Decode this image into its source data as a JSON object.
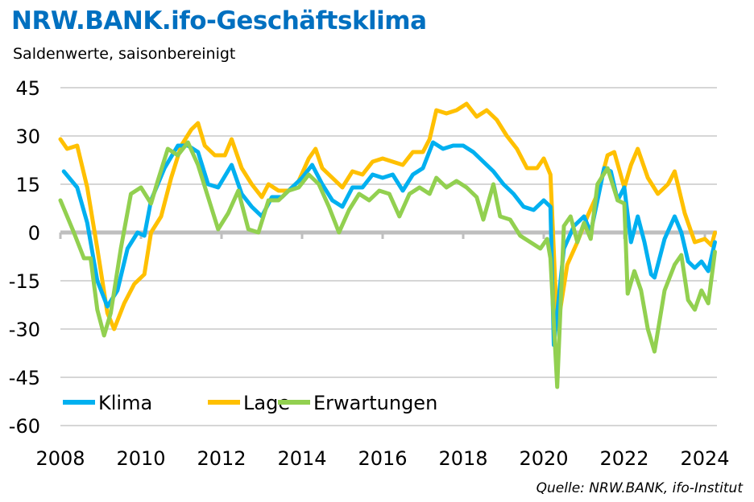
{
  "title": "NRW.BANK.ifo-Geschäftsklima",
  "subtitle": "Saldenwerte, saisonbereinigt",
  "source": "Quelle: NRW.BANK, ifo-Institut",
  "chart_data": {
    "type": "line",
    "title": "NRW.BANK.ifo-Geschäftsklima",
    "subtitle": "Saldenwerte, saisonbereinigt",
    "xlabel": "",
    "ylabel": "",
    "ylim": [
      -60,
      45
    ],
    "yticks": [
      45,
      30,
      15,
      0,
      -15,
      -30,
      -45,
      -60
    ],
    "xlim": [
      2008,
      2024.4
    ],
    "xticks": [
      "2008",
      "2010",
      "2012",
      "2014",
      "2016",
      "2018",
      "2020",
      "2022",
      "2024"
    ],
    "grid": true,
    "legend": "bottom-left",
    "series": [
      {
        "name": "Klima",
        "color": "#00b0f0",
        "points": [
          [
            "2008-02",
            19
          ],
          [
            "2008-06",
            14
          ],
          [
            "2008-09",
            3
          ],
          [
            "2008-12",
            -15
          ],
          [
            "2009-03",
            -23
          ],
          [
            "2009-06",
            -18
          ],
          [
            "2009-09",
            -5
          ],
          [
            "2009-12",
            0
          ],
          [
            "2010-02",
            -1
          ],
          [
            "2010-04",
            10
          ],
          [
            "2010-08",
            20
          ],
          [
            "2010-12",
            27
          ],
          [
            "2011-03",
            27
          ],
          [
            "2011-06",
            25
          ],
          [
            "2011-09",
            15
          ],
          [
            "2011-12",
            14
          ],
          [
            "2012-04",
            21
          ],
          [
            "2012-07",
            12
          ],
          [
            "2012-10",
            8
          ],
          [
            "2013-01",
            5
          ],
          [
            "2013-04",
            11
          ],
          [
            "2013-07",
            11
          ],
          [
            "2013-10",
            14
          ],
          [
            "2014-01",
            17
          ],
          [
            "2014-04",
            21
          ],
          [
            "2014-07",
            15
          ],
          [
            "2014-10",
            10
          ],
          [
            "2015-01",
            8
          ],
          [
            "2015-04",
            14
          ],
          [
            "2015-07",
            14
          ],
          [
            "2015-10",
            18
          ],
          [
            "2016-01",
            17
          ],
          [
            "2016-04",
            18
          ],
          [
            "2016-07",
            13
          ],
          [
            "2016-10",
            18
          ],
          [
            "2017-01",
            20
          ],
          [
            "2017-04",
            28
          ],
          [
            "2017-07",
            26
          ],
          [
            "2017-10",
            27
          ],
          [
            "2018-01",
            27
          ],
          [
            "2018-04",
            25
          ],
          [
            "2018-07",
            22
          ],
          [
            "2018-10",
            19
          ],
          [
            "2019-01",
            15
          ],
          [
            "2019-04",
            12
          ],
          [
            "2019-07",
            8
          ],
          [
            "2019-10",
            7
          ],
          [
            "2020-01",
            10
          ],
          [
            "2020-03",
            8
          ],
          [
            "2020-04",
            -35
          ],
          [
            "2020-05",
            -25
          ],
          [
            "2020-07",
            -5
          ],
          [
            "2020-10",
            2
          ],
          [
            "2021-01",
            5
          ],
          [
            "2021-03",
            0
          ],
          [
            "2021-05",
            10
          ],
          [
            "2021-07",
            20
          ],
          [
            "2021-09",
            19
          ],
          [
            "2021-11",
            10
          ],
          [
            "2022-01",
            14
          ],
          [
            "2022-03",
            -3
          ],
          [
            "2022-05",
            5
          ],
          [
            "2022-07",
            -3
          ],
          [
            "2022-09",
            -13
          ],
          [
            "2022-10",
            -14
          ],
          [
            "2023-01",
            -2
          ],
          [
            "2023-04",
            5
          ],
          [
            "2023-06",
            0
          ],
          [
            "2023-08",
            -9
          ],
          [
            "2023-10",
            -11
          ],
          [
            "2023-12",
            -9
          ],
          [
            "2024-02",
            -12
          ],
          [
            "2024-04",
            -3
          ]
        ]
      },
      {
        "name": "Lage",
        "color": "#ffc000",
        "points": [
          [
            "2008-01",
            29
          ],
          [
            "2008-03",
            26
          ],
          [
            "2008-06",
            27
          ],
          [
            "2008-09",
            14
          ],
          [
            "2008-12",
            -5
          ],
          [
            "2009-03",
            -25
          ],
          [
            "2009-05",
            -30
          ],
          [
            "2009-08",
            -22
          ],
          [
            "2009-11",
            -16
          ],
          [
            "2010-02",
            -13
          ],
          [
            "2010-04",
            0
          ],
          [
            "2010-07",
            5
          ],
          [
            "2010-10",
            17
          ],
          [
            "2011-01",
            27
          ],
          [
            "2011-04",
            32
          ],
          [
            "2011-06",
            34
          ],
          [
            "2011-08",
            27
          ],
          [
            "2011-11",
            24
          ],
          [
            "2012-02",
            24
          ],
          [
            "2012-04",
            29
          ],
          [
            "2012-07",
            20
          ],
          [
            "2012-10",
            15
          ],
          [
            "2013-01",
            11
          ],
          [
            "2013-03",
            15
          ],
          [
            "2013-06",
            13
          ],
          [
            "2013-09",
            13
          ],
          [
            "2013-12",
            16
          ],
          [
            "2014-03",
            23
          ],
          [
            "2014-05",
            26
          ],
          [
            "2014-07",
            20
          ],
          [
            "2014-10",
            17
          ],
          [
            "2015-01",
            14
          ],
          [
            "2015-04",
            19
          ],
          [
            "2015-07",
            18
          ],
          [
            "2015-10",
            22
          ],
          [
            "2016-01",
            23
          ],
          [
            "2016-04",
            22
          ],
          [
            "2016-07",
            21
          ],
          [
            "2016-10",
            25
          ],
          [
            "2017-01",
            25
          ],
          [
            "2017-03",
            29
          ],
          [
            "2017-05",
            38
          ],
          [
            "2017-08",
            37
          ],
          [
            "2017-11",
            38
          ],
          [
            "2018-02",
            40
          ],
          [
            "2018-05",
            36
          ],
          [
            "2018-08",
            38
          ],
          [
            "2018-11",
            35
          ],
          [
            "2019-02",
            30
          ],
          [
            "2019-05",
            26
          ],
          [
            "2019-08",
            20
          ],
          [
            "2019-11",
            20
          ],
          [
            "2020-01",
            23
          ],
          [
            "2020-03",
            18
          ],
          [
            "2020-05",
            -30
          ],
          [
            "2020-08",
            -10
          ],
          [
            "2020-11",
            -3
          ],
          [
            "2021-02",
            5
          ],
          [
            "2021-05",
            12
          ],
          [
            "2021-08",
            24
          ],
          [
            "2021-10",
            25
          ],
          [
            "2022-01",
            14
          ],
          [
            "2022-03",
            21
          ],
          [
            "2022-05",
            26
          ],
          [
            "2022-08",
            17
          ],
          [
            "2022-11",
            12
          ],
          [
            "2023-02",
            15
          ],
          [
            "2023-04",
            19
          ],
          [
            "2023-07",
            6
          ],
          [
            "2023-10",
            -3
          ],
          [
            "2024-01",
            -2
          ],
          [
            "2024-03",
            -4
          ],
          [
            "2024-04",
            0
          ]
        ]
      },
      {
        "name": "Erwartungen",
        "color": "#92d050",
        "points": [
          [
            "2008-01",
            10
          ],
          [
            "2008-05",
            0
          ],
          [
            "2008-08",
            -8
          ],
          [
            "2008-10",
            -8
          ],
          [
            "2008-12",
            -24
          ],
          [
            "2009-02",
            -32
          ],
          [
            "2009-04",
            -25
          ],
          [
            "2009-07",
            -5
          ],
          [
            "2009-10",
            12
          ],
          [
            "2010-01",
            14
          ],
          [
            "2010-04",
            9
          ],
          [
            "2010-06",
            16
          ],
          [
            "2010-09",
            26
          ],
          [
            "2010-12",
            24
          ],
          [
            "2011-03",
            28
          ],
          [
            "2011-06",
            21
          ],
          [
            "2011-09",
            11
          ],
          [
            "2011-12",
            1
          ],
          [
            "2012-03",
            6
          ],
          [
            "2012-06",
            13
          ],
          [
            "2012-09",
            1
          ],
          [
            "2012-12",
            0
          ],
          [
            "2013-03",
            10
          ],
          [
            "2013-06",
            10
          ],
          [
            "2013-09",
            13
          ],
          [
            "2013-12",
            14
          ],
          [
            "2014-03",
            18
          ],
          [
            "2014-06",
            15
          ],
          [
            "2014-09",
            8
          ],
          [
            "2014-12",
            0
          ],
          [
            "2015-03",
            7
          ],
          [
            "2015-06",
            12
          ],
          [
            "2015-09",
            10
          ],
          [
            "2015-12",
            13
          ],
          [
            "2016-03",
            12
          ],
          [
            "2016-06",
            5
          ],
          [
            "2016-09",
            12
          ],
          [
            "2016-12",
            14
          ],
          [
            "2017-03",
            12
          ],
          [
            "2017-05",
            17
          ],
          [
            "2017-08",
            14
          ],
          [
            "2017-11",
            16
          ],
          [
            "2018-02",
            14
          ],
          [
            "2018-05",
            11
          ],
          [
            "2018-07",
            4
          ],
          [
            "2018-10",
            15
          ],
          [
            "2018-12",
            5
          ],
          [
            "2019-03",
            4
          ],
          [
            "2019-06",
            -1
          ],
          [
            "2019-09",
            -3
          ],
          [
            "2019-12",
            -5
          ],
          [
            "2020-02",
            -2
          ],
          [
            "2020-03",
            -8
          ],
          [
            "2020-05",
            -48
          ],
          [
            "2020-07",
            2
          ],
          [
            "2020-09",
            5
          ],
          [
            "2020-11",
            -3
          ],
          [
            "2021-01",
            3
          ],
          [
            "2021-03",
            -2
          ],
          [
            "2021-05",
            15
          ],
          [
            "2021-08",
            20
          ],
          [
            "2021-11",
            10
          ],
          [
            "2022-01",
            9
          ],
          [
            "2022-02",
            -19
          ],
          [
            "2022-04",
            -12
          ],
          [
            "2022-06",
            -18
          ],
          [
            "2022-08",
            -30
          ],
          [
            "2022-10",
            -37
          ],
          [
            "2023-01",
            -18
          ],
          [
            "2023-04",
            -10
          ],
          [
            "2023-06",
            -7
          ],
          [
            "2023-08",
            -21
          ],
          [
            "2023-10",
            -24
          ],
          [
            "2023-12",
            -18
          ],
          [
            "2024-02",
            -22
          ],
          [
            "2024-04",
            -6
          ]
        ]
      }
    ]
  }
}
